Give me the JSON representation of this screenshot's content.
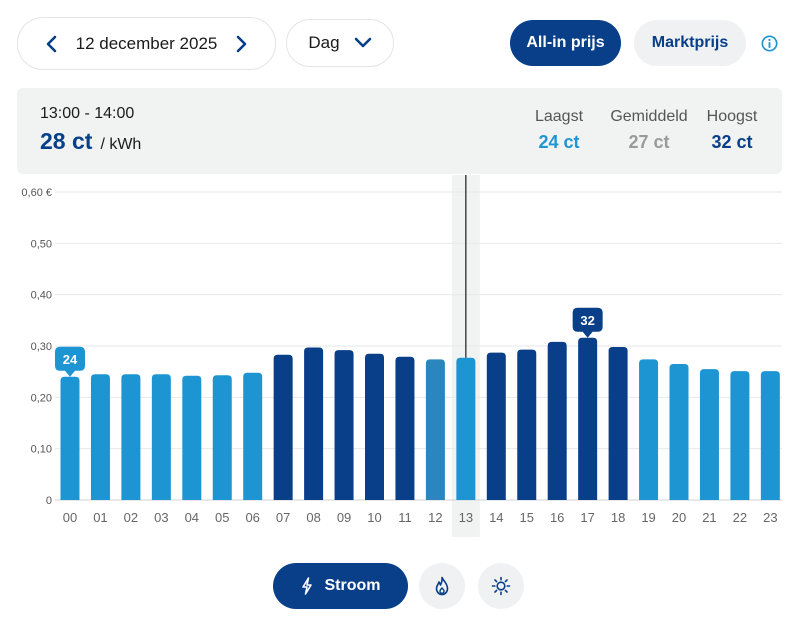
{
  "header": {
    "date": "12 december 2025",
    "period": "Dag",
    "toggle_allin": "All-in prijs",
    "toggle_markt": "Marktprijs",
    "icons": {
      "prev": "chevron-left-icon",
      "next": "chevron-right-icon",
      "dropdown": "chevron-down-icon",
      "info": "info-icon"
    }
  },
  "summary": {
    "time_range": "13:00 - 14:00",
    "price": "28 ct",
    "unit": "/ kWh",
    "lowest_label": "Laagst",
    "lowest_value": "24 ct",
    "average_label": "Gemiddeld",
    "average_value": "27 ct",
    "highest_label": "Hoogst",
    "highest_value": "32 ct"
  },
  "chart_data": {
    "type": "bar",
    "categories": [
      "00",
      "01",
      "02",
      "03",
      "04",
      "05",
      "06",
      "07",
      "08",
      "09",
      "10",
      "11",
      "12",
      "13",
      "14",
      "15",
      "16",
      "17",
      "18",
      "19",
      "20",
      "21",
      "22",
      "23"
    ],
    "values": [
      0.24,
      0.245,
      0.245,
      0.245,
      0.242,
      0.243,
      0.248,
      0.283,
      0.297,
      0.292,
      0.285,
      0.279,
      0.274,
      0.277,
      0.287,
      0.293,
      0.308,
      0.316,
      0.298,
      0.274,
      0.265,
      0.255,
      0.251,
      0.251
    ],
    "bar_tone": [
      "light",
      "light",
      "light",
      "light",
      "light",
      "light",
      "light",
      "dark",
      "dark",
      "dark",
      "dark",
      "dark",
      "light",
      "light",
      "dark",
      "dark",
      "dark",
      "dark",
      "dark",
      "light",
      "light",
      "light",
      "light",
      "light"
    ],
    "yticks": [
      "0",
      "0,10",
      "0,20",
      "0,30",
      "0,40",
      "0,50",
      "0,60 €"
    ],
    "ylim": [
      0,
      0.6
    ],
    "selected_index": 13,
    "callouts": [
      {
        "index": 0,
        "label": "24",
        "tone": "light"
      },
      {
        "index": 17,
        "label": "32",
        "tone": "dark"
      }
    ],
    "grid": true,
    "colors": {
      "light": "#1e95d3",
      "dark": "#083f88",
      "light_dim": "#2b86bf"
    }
  },
  "footer": {
    "stroom_label": "Stroom",
    "icons": {
      "stroom": "lightning-icon",
      "gas": "flame-icon",
      "zon": "sun-icon"
    }
  }
}
